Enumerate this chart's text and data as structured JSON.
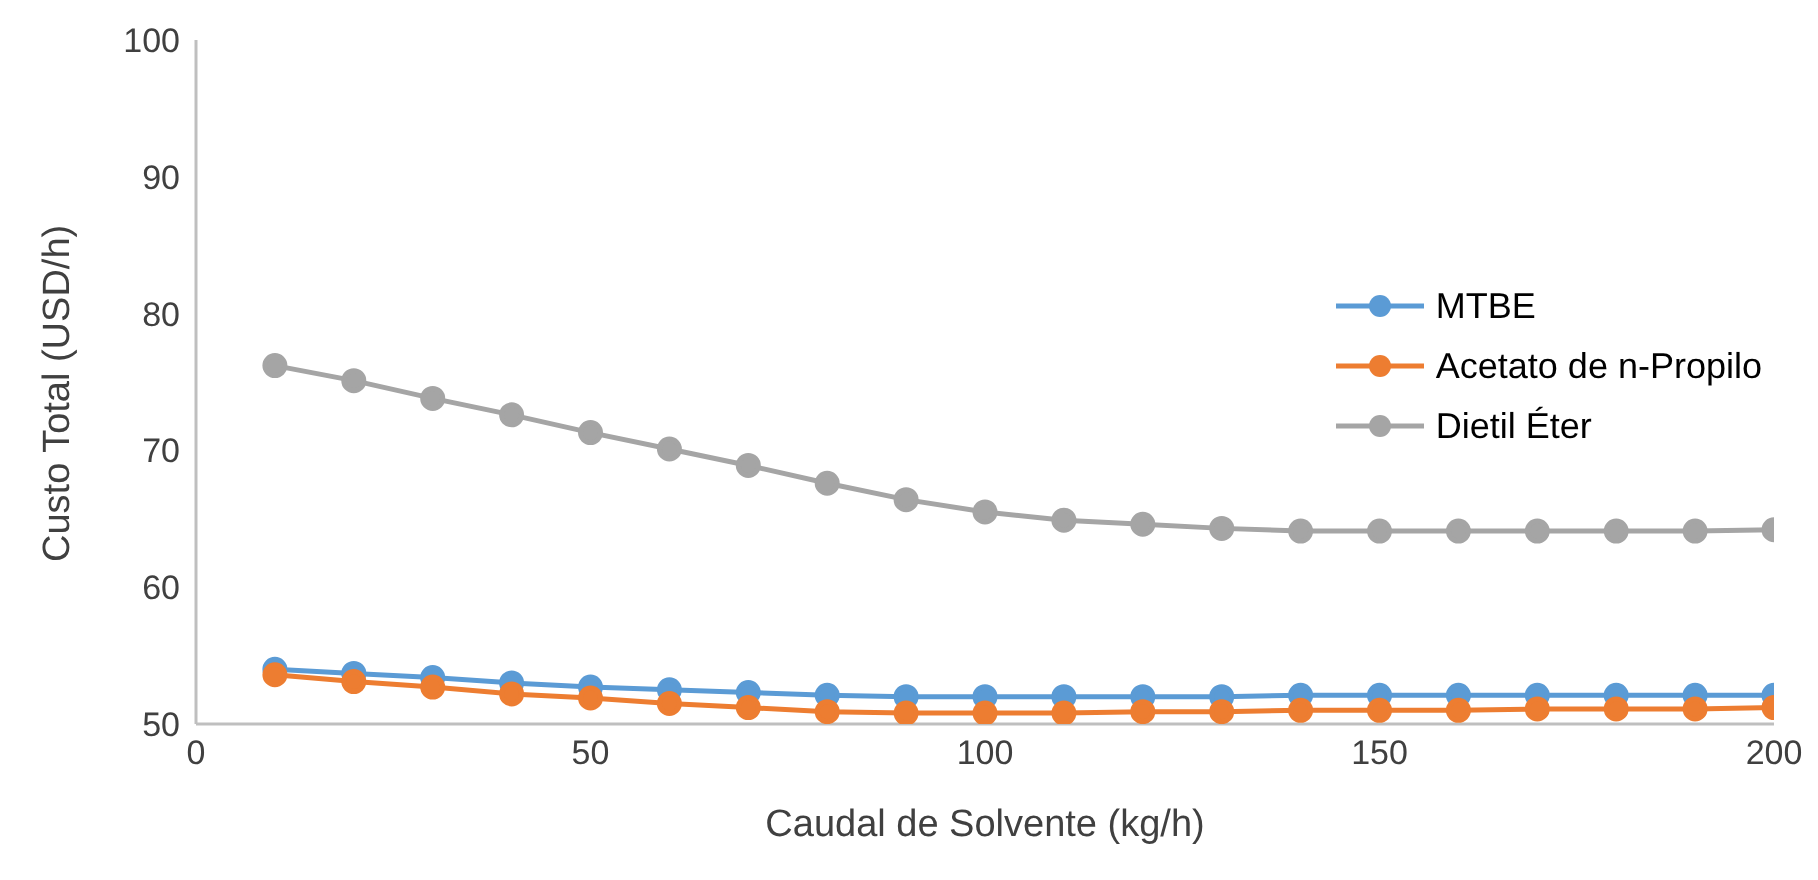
{
  "chart_data": {
    "type": "line",
    "xlabel": "Caudal de Solvente (kg/h)",
    "ylabel": "Custo Total (USD/h)",
    "x": [
      10,
      20,
      30,
      40,
      50,
      60,
      70,
      80,
      90,
      100,
      110,
      120,
      130,
      140,
      150,
      160,
      170,
      180,
      190,
      200
    ],
    "series": [
      {
        "name": "MTBE",
        "color": "#5b9bd5",
        "values": [
          54.0,
          53.7,
          53.4,
          53.0,
          52.7,
          52.5,
          52.3,
          52.1,
          52.0,
          52.0,
          52.0,
          52.0,
          52.0,
          52.1,
          52.1,
          52.1,
          52.1,
          52.1,
          52.1,
          52.1
        ]
      },
      {
        "name": "Acetato de n-Propilo",
        "color": "#ed7d31",
        "values": [
          53.6,
          53.1,
          52.7,
          52.2,
          51.9,
          51.5,
          51.2,
          50.9,
          50.8,
          50.8,
          50.8,
          50.9,
          50.9,
          51.0,
          51.0,
          51.0,
          51.1,
          51.1,
          51.1,
          51.2
        ]
      },
      {
        "name": "Dietil Éter",
        "color": "#a5a5a5",
        "values": [
          76.2,
          75.1,
          73.8,
          72.6,
          71.3,
          70.1,
          68.9,
          67.6,
          66.4,
          65.5,
          64.9,
          64.6,
          64.3,
          64.1,
          64.1,
          64.1,
          64.1,
          64.1,
          64.1,
          64.2
        ]
      }
    ],
    "xlim": [
      0,
      200
    ],
    "xticks": [
      0,
      50,
      100,
      150,
      200
    ],
    "ylim": [
      50,
      100
    ],
    "yticks": [
      50,
      60,
      70,
      80,
      90,
      100
    ],
    "grid": false,
    "legend": "right",
    "marker": "circle",
    "line_style": "solid"
  }
}
